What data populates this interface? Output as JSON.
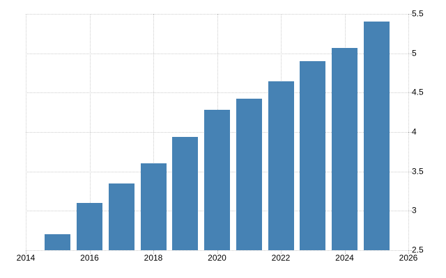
{
  "page": {
    "background": "#ffffff"
  },
  "chart_data": {
    "type": "bar",
    "x": [
      2015,
      2016,
      2017,
      2018,
      2019,
      2020,
      2021,
      2022,
      2023,
      2024,
      2025
    ],
    "values": [
      2.7,
      3.1,
      3.35,
      3.6,
      3.94,
      4.28,
      4.42,
      4.64,
      4.9,
      5.07,
      5.4
    ],
    "xlim": [
      2014,
      2026
    ],
    "ylim": [
      2.5,
      5.5
    ],
    "x_tick_labels": [
      "2014",
      "2016",
      "2018",
      "2020",
      "2022",
      "2024",
      "2026"
    ],
    "y_tick_labels": [
      "2.5",
      "3",
      "3.5",
      "4",
      "4.5",
      "5",
      "5.5"
    ],
    "y_axis_position": "right",
    "grid": "dotted",
    "legend": "none",
    "bar_color": "#4682b4",
    "grid_color": "#cccccc",
    "tick_mark_color": "#aaaaaa",
    "tick_label_color": "#000000"
  }
}
